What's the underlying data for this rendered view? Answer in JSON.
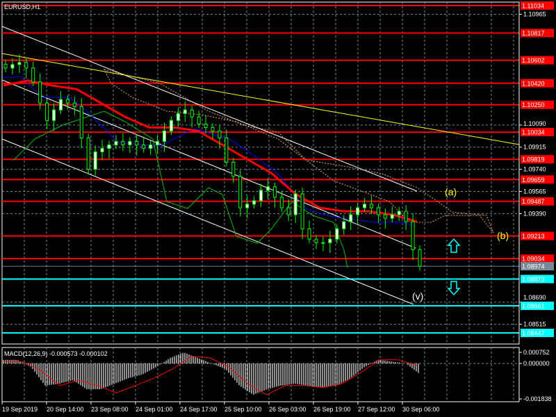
{
  "window": {
    "title": "EURUSD,H1"
  },
  "colors": {
    "background": "#000000",
    "bull": "#ffffff",
    "bear": "#000000",
    "wick": "#00ff00",
    "level_red": "#ff0000",
    "level_cyan": "#00ffff",
    "bid": "#778899",
    "ma": "#ff0000",
    "trend": "#ffff00",
    "channel": "#ffffff",
    "macd_hist": "#c0c0c0",
    "macd_signal": "#ff0000",
    "grid": "#778899"
  },
  "chart_data": {
    "type": "candlestick",
    "symbol": "EURUSD",
    "timeframe": "H1",
    "price_ylim": [
      1.0835,
      1.1108
    ],
    "grid": true,
    "price_ticks": [
      "1.10965",
      "1.10090",
      "1.09915",
      "1.09740",
      "1.09565",
      "1.09390",
      "1.08690",
      "1.08515"
    ],
    "time_ticks": [
      "19 Sep 2019",
      "20 Sep 14:00",
      "23 Sep 08:00",
      "24 Sep 01:00",
      "24 Sep 17:00",
      "25 Sep 10:00",
      "26 Sep 03:00",
      "26 Sep 19:00",
      "27 Sep 12:00",
      "30 Sep 06:00"
    ],
    "closes": [
      1.1054,
      1.10568,
      1.10584,
      1.1054,
      1.1043,
      1.10264,
      1.10126,
      1.10209,
      1.10292,
      1.10264,
      1.10236,
      1.09988,
      1.0974,
      1.09878,
      1.09905,
      1.09933,
      1.0996,
      1.09933,
      1.0996,
      1.09933,
      1.09905,
      1.09933,
      1.0996,
      1.10043,
      1.10126,
      1.10181,
      1.10209,
      1.10154,
      1.10098,
      1.10071,
      1.10043,
      1.09988,
      1.09795,
      1.09684,
      1.09436,
      1.09464,
      1.09491,
      1.09574,
      1.09602,
      1.09519,
      1.09436,
      1.09381,
      1.09546,
      1.0927,
      1.09188,
      1.0916,
      1.0916,
      1.09188,
      1.0927,
      1.09326,
      1.09381,
      1.09436,
      1.09464,
      1.09436,
      1.09381,
      1.09353,
      1.09381,
      1.09408,
      1.09326,
      1.09105,
      1.08974
    ],
    "moving_average": [
      1.10402,
      1.10441,
      1.10402,
      1.10374,
      1.10264,
      1.10154,
      1.10071,
      1.10071,
      1.10043,
      1.09933,
      1.09822,
      1.09712,
      1.09546,
      1.09436,
      1.09408,
      1.09408,
      1.09381,
      1.09326
    ],
    "levels": [
      {
        "price": "1.11034",
        "color": "#ff0000"
      },
      {
        "price": "1.10817",
        "color": "#ff0000"
      },
      {
        "price": "1.10602",
        "color": "#ff0000"
      },
      {
        "price": "1.10420",
        "color": "#ff0000"
      },
      {
        "price": "1.10250",
        "color": "#ff0000"
      },
      {
        "price": "1.10034",
        "color": "#ff0000"
      },
      {
        "price": "1.09819",
        "color": "#ff0000"
      },
      {
        "price": "1.09659",
        "color": "#ff0000"
      },
      {
        "price": "1.09487",
        "color": "#ff0000"
      },
      {
        "price": "1.09213",
        "color": "#ff0000"
      },
      {
        "price": "1.09034",
        "color": "#ff0000"
      },
      {
        "price": "1.08974",
        "color": "#778899"
      },
      {
        "price": "1.08873",
        "color": "#00ffff"
      },
      {
        "price": "1.08661",
        "color": "#00ffff"
      },
      {
        "price": "1.08447",
        "color": "#00ffff"
      }
    ],
    "annotations": [
      {
        "text": "(a)",
        "color": "#ffff00"
      },
      {
        "text": "(b)",
        "color": "#ffff00"
      },
      {
        "text": "(v)",
        "color": "#ffffff"
      }
    ],
    "arrows": [
      {
        "direction": "up",
        "color": "#00ffff"
      },
      {
        "direction": "down",
        "color": "#00ffff"
      }
    ],
    "macd": {
      "label": "MACD(12,26,9) -0.000573 -0.000102",
      "ticks": [
        "0.000752",
        "0.000000",
        "-0.001838"
      ],
      "ylim": [
        -0.001838,
        0.000752
      ],
      "histogram": [
        0.00019,
        0.00019,
        -0.00019,
        -0.0012,
        -0.0011,
        -0.0009,
        -0.0014,
        -0.0014,
        -0.0011,
        -0.0008,
        -0.0006,
        -0.0002,
        0.0003,
        0.0006,
        0.0003,
        0,
        -0.0003,
        -0.0012,
        -0.0017,
        -0.0014,
        -0.0012,
        -0.0011,
        -0.0012,
        -0.0013,
        -0.0012,
        -0.0008,
        -0.0002,
        0.0002,
        0.0001,
        0,
        -0.000573
      ],
      "signal": [
        0.0001,
        0.0001,
        -0.0004,
        -0.0012,
        -0.0009,
        -0.0012,
        -0.0016,
        -0.0012,
        -0.0008,
        -0.0003,
        0.0004,
        0.0003,
        -0.0002,
        -0.0011,
        -0.0017,
        -0.0012,
        -0.0012,
        -0.0013,
        -0.0011,
        -0.0005,
        0.0002,
        0.0002,
        -0.000102
      ]
    }
  }
}
